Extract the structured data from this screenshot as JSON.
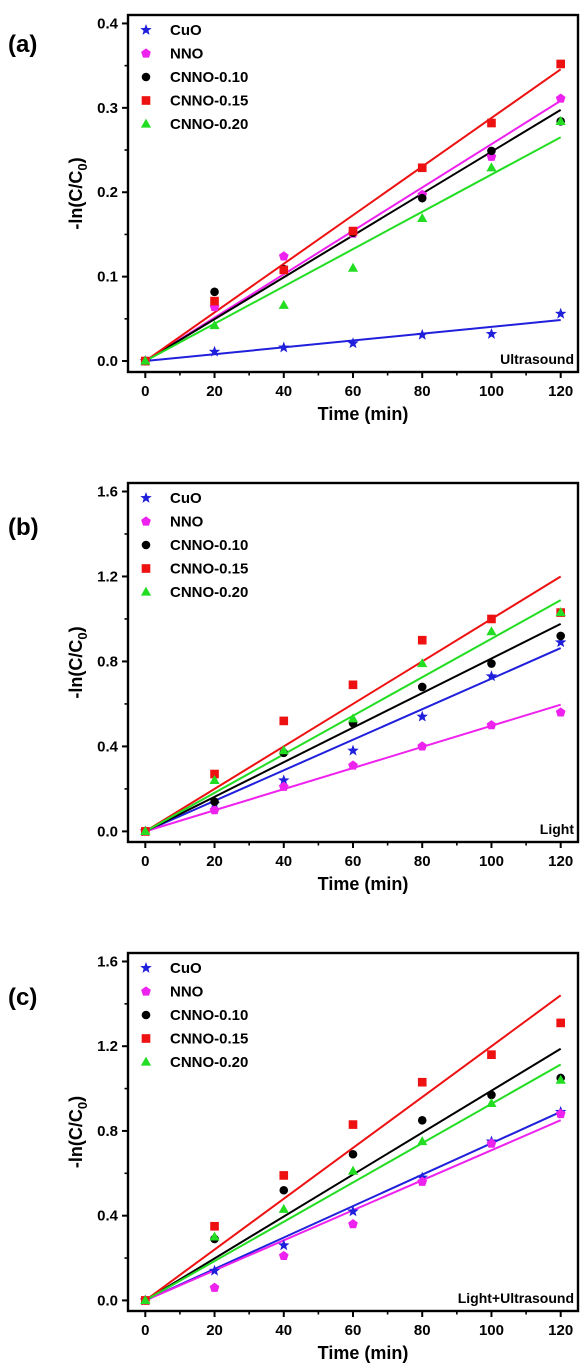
{
  "chart_data": [
    {
      "type": "scatter",
      "panel_label": "(a)",
      "condition": "Ultrasound",
      "xlabel": "Time (min)",
      "ylabel_main": "-ln(C/C",
      "ylabel_sub": "0",
      "ylabel_close": ")",
      "xlim": [
        -5,
        125
      ],
      "ylim": [
        -0.013,
        0.41
      ],
      "xticks": [
        0,
        20,
        40,
        60,
        80,
        100,
        120
      ],
      "yticks": [
        0.0,
        0.1,
        0.2,
        0.3,
        0.4
      ],
      "ytick_labels": [
        "0.0",
        "0.1",
        "0.2",
        "0.3",
        "0.4"
      ],
      "legend_position": "top-left",
      "x": [
        0,
        20,
        40,
        60,
        80,
        100,
        120
      ],
      "series": [
        {
          "name": "CuO",
          "marker": "star",
          "color": "#1f1fdc",
          "values": [
            0.0,
            0.011,
            0.016,
            0.021,
            0.031,
            0.032,
            0.056
          ],
          "fit_slope": 0.000405
        },
        {
          "name": "NNO",
          "marker": "pentagon",
          "color": "#ee22ee",
          "values": [
            0.0,
            0.064,
            0.124,
            0.151,
            0.197,
            0.242,
            0.311
          ],
          "fit_slope": 0.00257
        },
        {
          "name": "CNNO-0.10",
          "marker": "circle",
          "color": "#000000",
          "values": [
            0.0,
            0.082,
            0.109,
            0.152,
            0.193,
            0.249,
            0.284
          ],
          "fit_slope": 0.00248
        },
        {
          "name": "CNNO-0.15",
          "marker": "square",
          "color": "#ee1111",
          "values": [
            0.0,
            0.071,
            0.108,
            0.154,
            0.229,
            0.282,
            0.352
          ],
          "fit_slope": 0.00288
        },
        {
          "name": "CNNO-0.20",
          "marker": "triangle",
          "color": "#22dd22",
          "values": [
            0.0,
            0.042,
            0.066,
            0.11,
            0.169,
            0.229,
            0.284
          ],
          "fit_slope": 0.00221
        }
      ]
    },
    {
      "type": "scatter",
      "panel_label": "(b)",
      "condition": "Light",
      "xlabel": "Time (min)",
      "ylabel_main": "-ln(C/C",
      "ylabel_sub": "0",
      "ylabel_close": ")",
      "xlim": [
        -5,
        125
      ],
      "ylim": [
        -0.05,
        1.64
      ],
      "xticks": [
        0,
        20,
        40,
        60,
        80,
        100,
        120
      ],
      "yticks": [
        0.0,
        0.4,
        0.8,
        1.2,
        1.6
      ],
      "ytick_labels": [
        "0.0",
        "0.4",
        "0.8",
        "1.2",
        "1.6"
      ],
      "legend_position": "top-left",
      "x": [
        0,
        20,
        40,
        60,
        80,
        100,
        120
      ],
      "series": [
        {
          "name": "CuO",
          "marker": "star",
          "color": "#1f1fdc",
          "values": [
            0.0,
            0.13,
            0.24,
            0.38,
            0.54,
            0.73,
            0.89
          ],
          "fit_slope": 0.00719
        },
        {
          "name": "NNO",
          "marker": "pentagon",
          "color": "#ee22ee",
          "values": [
            0.0,
            0.1,
            0.21,
            0.31,
            0.4,
            0.5,
            0.56
          ],
          "fit_slope": 0.00497
        },
        {
          "name": "CNNO-0.10",
          "marker": "circle",
          "color": "#000000",
          "values": [
            0.0,
            0.14,
            0.37,
            0.51,
            0.68,
            0.79,
            0.92
          ],
          "fit_slope": 0.00814
        },
        {
          "name": "CNNO-0.15",
          "marker": "square",
          "color": "#ee1111",
          "values": [
            0.0,
            0.27,
            0.52,
            0.69,
            0.9,
            1.0,
            1.03
          ],
          "fit_slope": 0.01
        },
        {
          "name": "CNNO-0.20",
          "marker": "triangle",
          "color": "#22dd22",
          "values": [
            0.0,
            0.24,
            0.38,
            0.53,
            0.79,
            0.94,
            1.03
          ],
          "fit_slope": 0.00907
        }
      ]
    },
    {
      "type": "scatter",
      "panel_label": "(c)",
      "condition": "Light+Ultrasound",
      "xlabel": "Time (min)",
      "ylabel_main": "-ln(C/C",
      "ylabel_sub": "0",
      "ylabel_close": ")",
      "xlim": [
        -5,
        125
      ],
      "ylim": [
        -0.05,
        1.64
      ],
      "xticks": [
        0,
        20,
        40,
        60,
        80,
        100,
        120
      ],
      "yticks": [
        0.0,
        0.4,
        0.8,
        1.2,
        1.6
      ],
      "ytick_labels": [
        "0.0",
        "0.4",
        "0.8",
        "1.2",
        "1.6"
      ],
      "legend_position": "top-left",
      "x": [
        0,
        20,
        40,
        60,
        80,
        100,
        120
      ],
      "series": [
        {
          "name": "CuO",
          "marker": "star",
          "color": "#1f1fdc",
          "values": [
            0.0,
            0.14,
            0.26,
            0.42,
            0.58,
            0.75,
            0.89
          ],
          "fit_slope": 0.00742
        },
        {
          "name": "NNO",
          "marker": "pentagon",
          "color": "#ee22ee",
          "values": [
            0.0,
            0.06,
            0.21,
            0.36,
            0.56,
            0.74,
            0.88
          ],
          "fit_slope": 0.00709
        },
        {
          "name": "CNNO-0.10",
          "marker": "circle",
          "color": "#000000",
          "values": [
            0.0,
            0.29,
            0.52,
            0.69,
            0.85,
            0.97,
            1.05
          ],
          "fit_slope": 0.0099
        },
        {
          "name": "CNNO-0.15",
          "marker": "square",
          "color": "#ee1111",
          "values": [
            0.0,
            0.35,
            0.59,
            0.83,
            1.03,
            1.16,
            1.31
          ],
          "fit_slope": 0.012
        },
        {
          "name": "CNNO-0.20",
          "marker": "triangle",
          "color": "#22dd22",
          "values": [
            0.0,
            0.3,
            0.43,
            0.61,
            0.75,
            0.93,
            1.04
          ],
          "fit_slope": 0.00928
        }
      ]
    }
  ]
}
